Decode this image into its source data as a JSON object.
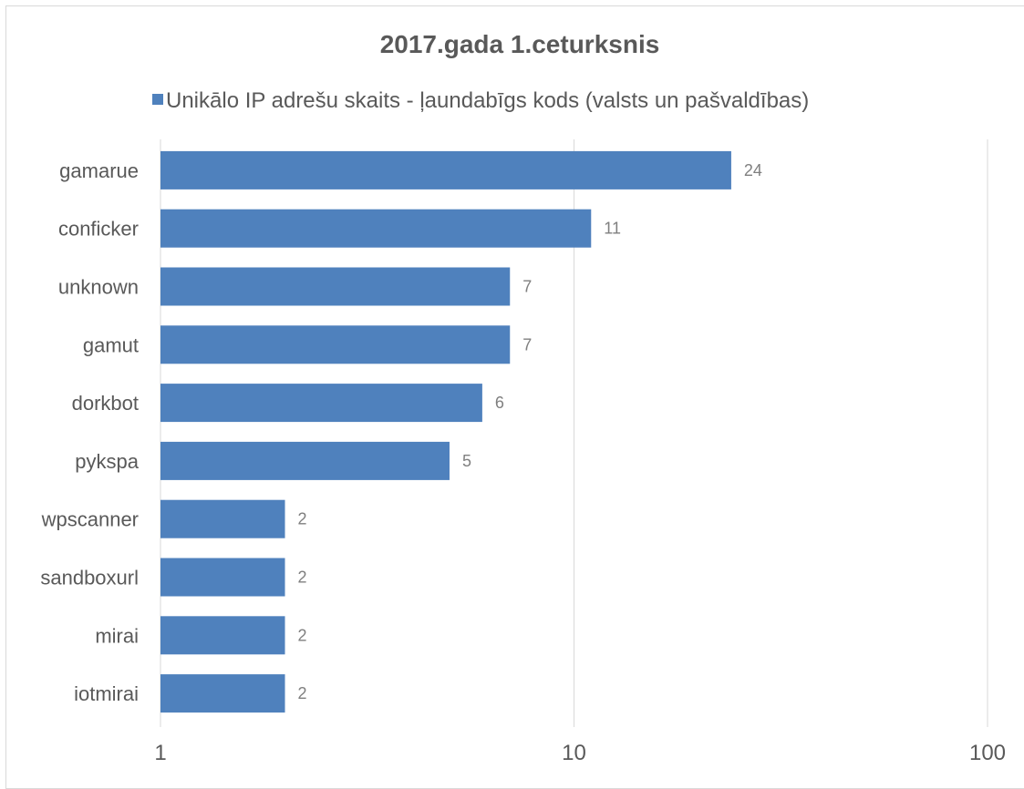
{
  "chart_data": {
    "type": "bar",
    "orientation": "horizontal",
    "title": "2017.gada 1.ceturksnis",
    "legend": {
      "position": "top",
      "entries": [
        "Unikālo IP adrešu skaits -  ļaundabīgs kods (valsts un pašvaldības)"
      ]
    },
    "categories": [
      "gamarue",
      "conficker",
      "unknown",
      "gamut",
      "dorkbot",
      "pykspa",
      "wpscanner",
      "sandboxurl",
      "mirai",
      "iotmirai"
    ],
    "series": [
      {
        "name": "Unikālo IP adrešu skaits -  ļaundabīgs kods (valsts un pašvaldības)",
        "values": [
          24,
          11,
          7,
          7,
          6,
          5,
          2,
          2,
          2,
          2
        ],
        "color": "#4f81bd"
      }
    ],
    "x_axis": {
      "scale": "log",
      "range": [
        1,
        100
      ],
      "ticks": [
        1,
        10,
        100
      ],
      "tick_labels": [
        "1",
        "10",
        "100"
      ]
    },
    "grid": "vertical",
    "data_labels": [
      "24",
      "11",
      "7",
      "7",
      "6",
      "5",
      "2",
      "2",
      "2",
      "2"
    ]
  }
}
